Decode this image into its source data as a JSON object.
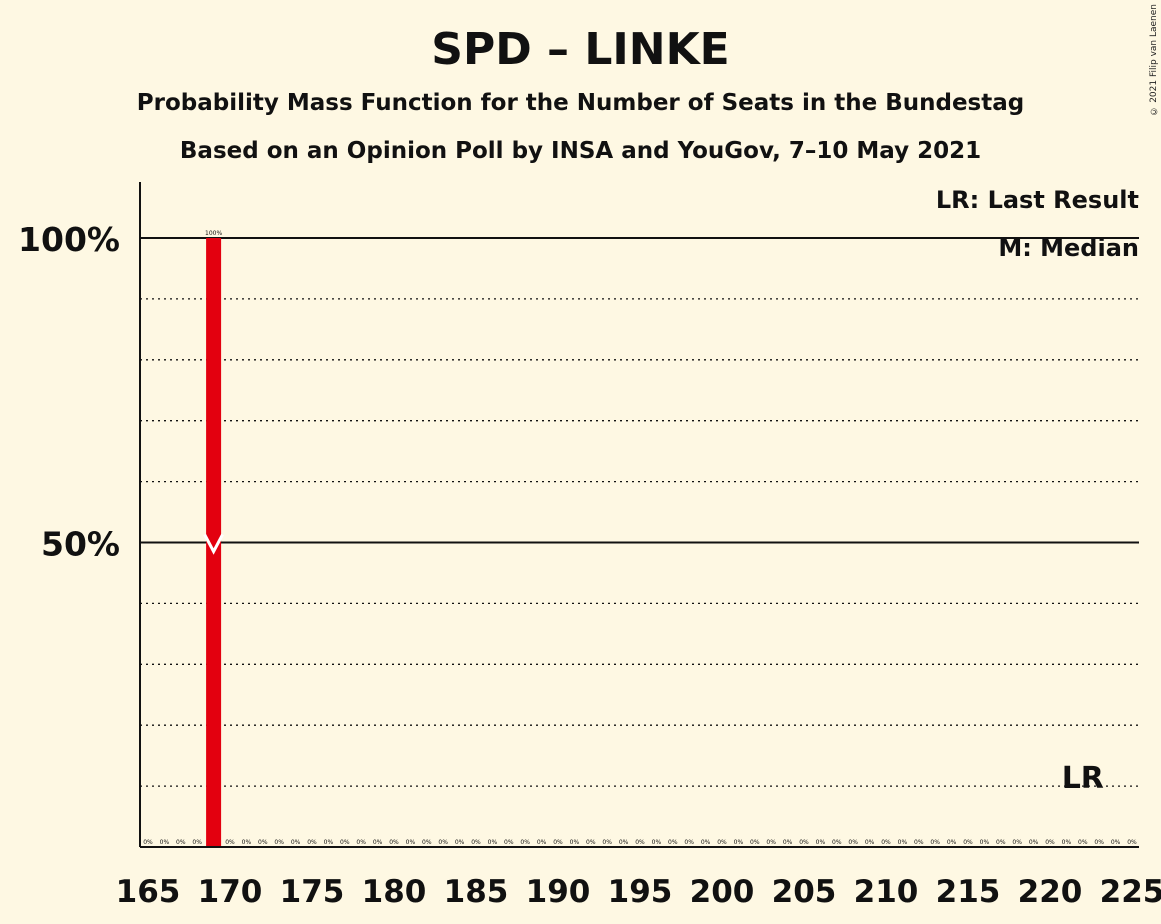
{
  "title": "SPD – LINKE",
  "subtitle1": "Probability Mass Function for the Number of Seats in the Bundestag",
  "subtitle2": "Based on an Opinion Poll by INSA and YouGov, 7–10 May 2021",
  "copyright": "© 2021 Filip van Laenen",
  "legend": {
    "last_result": "LR: Last Result",
    "median": "M: Median"
  },
  "colors": {
    "background": "#FEF8E3",
    "bar": "#E3000F",
    "median_marker": "#FFFFFF"
  },
  "chart_data": {
    "type": "bar",
    "title": "SPD – LINKE",
    "xlabel": "",
    "ylabel": "",
    "xlim": [
      165,
      225
    ],
    "ylim": [
      0,
      110
    ],
    "x_ticks": [
      165,
      170,
      175,
      180,
      185,
      190,
      195,
      200,
      205,
      210,
      215,
      220,
      225
    ],
    "y_ticks": [
      {
        "value": 50,
        "label": "50%"
      },
      {
        "value": 100,
        "label": "100%"
      }
    ],
    "minor_gridlines": [
      10,
      20,
      30,
      40,
      60,
      70,
      80,
      90
    ],
    "legend_position": "top-right",
    "bars": [
      {
        "x": 165,
        "value": 0,
        "label": "0%"
      },
      {
        "x": 166,
        "value": 0,
        "label": "0%"
      },
      {
        "x": 167,
        "value": 0,
        "label": "0%"
      },
      {
        "x": 168,
        "value": 0,
        "label": "0%"
      },
      {
        "x": 169,
        "value": 100,
        "label": "100%"
      },
      {
        "x": 170,
        "value": 0,
        "label": "0%"
      },
      {
        "x": 171,
        "value": 0,
        "label": "0%"
      },
      {
        "x": 172,
        "value": 0,
        "label": "0%"
      },
      {
        "x": 173,
        "value": 0,
        "label": "0%"
      },
      {
        "x": 174,
        "value": 0,
        "label": "0%"
      },
      {
        "x": 175,
        "value": 0,
        "label": "0%"
      },
      {
        "x": 176,
        "value": 0,
        "label": "0%"
      },
      {
        "x": 177,
        "value": 0,
        "label": "0%"
      },
      {
        "x": 178,
        "value": 0,
        "label": "0%"
      },
      {
        "x": 179,
        "value": 0,
        "label": "0%"
      },
      {
        "x": 180,
        "value": 0,
        "label": "0%"
      },
      {
        "x": 181,
        "value": 0,
        "label": "0%"
      },
      {
        "x": 182,
        "value": 0,
        "label": "0%"
      },
      {
        "x": 183,
        "value": 0,
        "label": "0%"
      },
      {
        "x": 184,
        "value": 0,
        "label": "0%"
      },
      {
        "x": 185,
        "value": 0,
        "label": "0%"
      },
      {
        "x": 186,
        "value": 0,
        "label": "0%"
      },
      {
        "x": 187,
        "value": 0,
        "label": "0%"
      },
      {
        "x": 188,
        "value": 0,
        "label": "0%"
      },
      {
        "x": 189,
        "value": 0,
        "label": "0%"
      },
      {
        "x": 190,
        "value": 0,
        "label": "0%"
      },
      {
        "x": 191,
        "value": 0,
        "label": "0%"
      },
      {
        "x": 192,
        "value": 0,
        "label": "0%"
      },
      {
        "x": 193,
        "value": 0,
        "label": "0%"
      },
      {
        "x": 194,
        "value": 0,
        "label": "0%"
      },
      {
        "x": 195,
        "value": 0,
        "label": "0%"
      },
      {
        "x": 196,
        "value": 0,
        "label": "0%"
      },
      {
        "x": 197,
        "value": 0,
        "label": "0%"
      },
      {
        "x": 198,
        "value": 0,
        "label": "0%"
      },
      {
        "x": 199,
        "value": 0,
        "label": "0%"
      },
      {
        "x": 200,
        "value": 0,
        "label": "0%"
      },
      {
        "x": 201,
        "value": 0,
        "label": "0%"
      },
      {
        "x": 202,
        "value": 0,
        "label": "0%"
      },
      {
        "x": 203,
        "value": 0,
        "label": "0%"
      },
      {
        "x": 204,
        "value": 0,
        "label": "0%"
      },
      {
        "x": 205,
        "value": 0,
        "label": "0%"
      },
      {
        "x": 206,
        "value": 0,
        "label": "0%"
      },
      {
        "x": 207,
        "value": 0,
        "label": "0%"
      },
      {
        "x": 208,
        "value": 0,
        "label": "0%"
      },
      {
        "x": 209,
        "value": 0,
        "label": "0%"
      },
      {
        "x": 210,
        "value": 0,
        "label": "0%"
      },
      {
        "x": 211,
        "value": 0,
        "label": "0%"
      },
      {
        "x": 212,
        "value": 0,
        "label": "0%"
      },
      {
        "x": 213,
        "value": 0,
        "label": "0%"
      },
      {
        "x": 214,
        "value": 0,
        "label": "0%"
      },
      {
        "x": 215,
        "value": 0,
        "label": "0%"
      },
      {
        "x": 216,
        "value": 0,
        "label": "0%"
      },
      {
        "x": 217,
        "value": 0,
        "label": "0%"
      },
      {
        "x": 218,
        "value": 0,
        "label": "0%"
      },
      {
        "x": 219,
        "value": 0,
        "label": "0%"
      },
      {
        "x": 220,
        "value": 0,
        "label": "0%"
      },
      {
        "x": 221,
        "value": 0,
        "label": "0%"
      },
      {
        "x": 222,
        "value": 0,
        "label": "0%"
      },
      {
        "x": 223,
        "value": 0,
        "label": "0%"
      },
      {
        "x": 224,
        "value": 0,
        "label": "0%"
      },
      {
        "x": 225,
        "value": 0,
        "label": "0%"
      }
    ],
    "median": {
      "x": 169,
      "value": 50,
      "label": "M"
    },
    "last_result": {
      "x": 222,
      "label": "LR"
    }
  }
}
